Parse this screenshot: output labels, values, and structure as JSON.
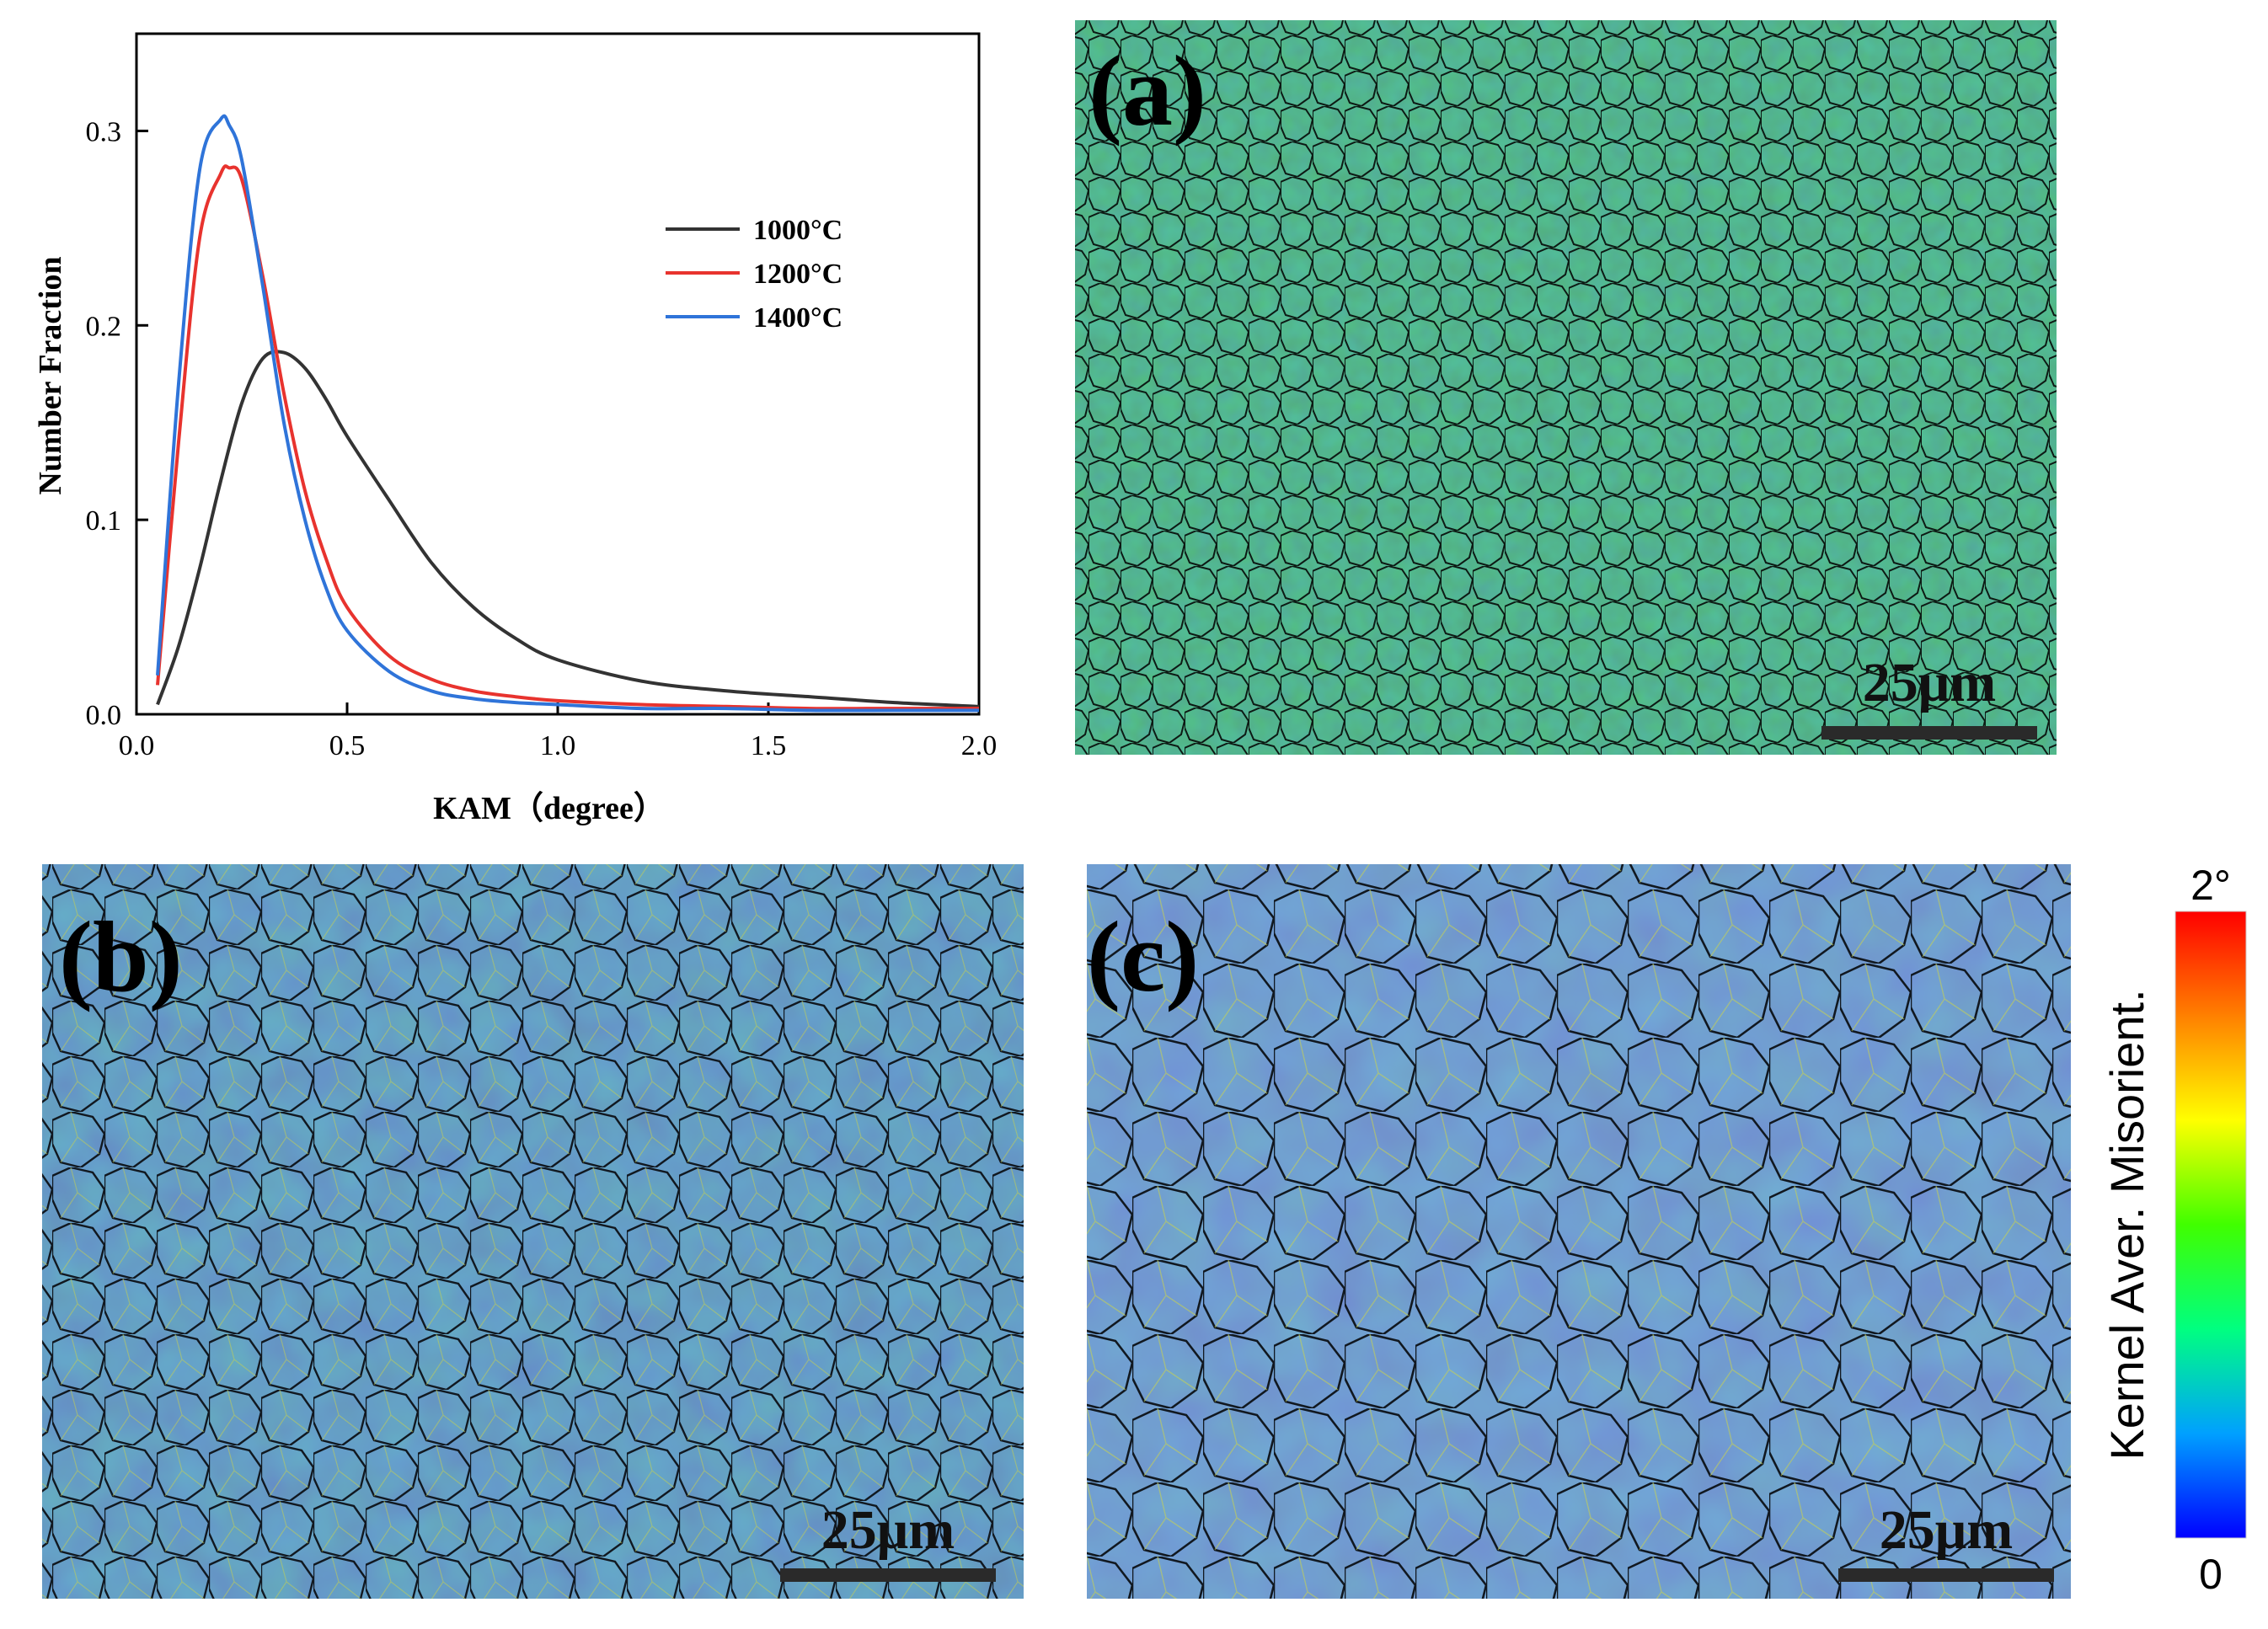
{
  "chart_data": {
    "type": "line",
    "title": "",
    "xlabel": "KAM（degree）",
    "ylabel": "Number Fraction",
    "xlim": [
      0.0,
      2.0
    ],
    "ylim": [
      0.0,
      0.35
    ],
    "xticks": [
      "0.0",
      "0.5",
      "1.0",
      "1.5",
      "2.0"
    ],
    "yticks": [
      "0.0",
      "0.1",
      "0.2",
      "0.3"
    ],
    "legend_position": "top-right",
    "series": [
      {
        "name": "1000°C",
        "color": "#333333",
        "x": [
          0.05,
          0.1,
          0.15,
          0.2,
          0.25,
          0.3,
          0.35,
          0.4,
          0.45,
          0.5,
          0.6,
          0.7,
          0.8,
          0.9,
          1.0,
          1.2,
          1.4,
          1.6,
          1.8,
          2.0
        ],
        "y": [
          0.005,
          0.035,
          0.075,
          0.12,
          0.16,
          0.183,
          0.186,
          0.178,
          0.162,
          0.143,
          0.11,
          0.078,
          0.055,
          0.039,
          0.028,
          0.017,
          0.012,
          0.009,
          0.006,
          0.004
        ]
      },
      {
        "name": "1200°C",
        "color": "#e8332e",
        "x": [
          0.05,
          0.1,
          0.15,
          0.2,
          0.22,
          0.25,
          0.3,
          0.35,
          0.4,
          0.45,
          0.5,
          0.6,
          0.7,
          0.8,
          0.9,
          1.0,
          1.2,
          1.4,
          1.6,
          1.8,
          2.0
        ],
        "y": [
          0.015,
          0.14,
          0.245,
          0.278,
          0.281,
          0.275,
          0.225,
          0.165,
          0.115,
          0.08,
          0.055,
          0.03,
          0.018,
          0.012,
          0.009,
          0.007,
          0.005,
          0.004,
          0.003,
          0.003,
          0.003
        ]
      },
      {
        "name": "1400°C",
        "color": "#2f74d9",
        "x": [
          0.05,
          0.1,
          0.15,
          0.2,
          0.22,
          0.25,
          0.3,
          0.35,
          0.4,
          0.45,
          0.5,
          0.6,
          0.7,
          0.8,
          0.9,
          1.0,
          1.2,
          1.4,
          1.6,
          1.8,
          2.0
        ],
        "y": [
          0.02,
          0.17,
          0.28,
          0.306,
          0.303,
          0.285,
          0.22,
          0.15,
          0.1,
          0.065,
          0.043,
          0.022,
          0.012,
          0.008,
          0.006,
          0.005,
          0.003,
          0.003,
          0.002,
          0.002,
          0.002
        ]
      }
    ]
  },
  "panels": [
    {
      "label": "(a)",
      "scale_bar": "25μm"
    },
    {
      "label": "(b)",
      "scale_bar": "25μm"
    },
    {
      "label": "(c)",
      "scale_bar": "25μm"
    }
  ],
  "colorbar": {
    "title": "Kernel Aver. Misorient.",
    "max_label": "2°",
    "min_label": "0",
    "colors": [
      "#0000ff",
      "#00a0ff",
      "#00ff80",
      "#40ff00",
      "#ffff00",
      "#ff8000",
      "#ff0000"
    ]
  },
  "map_colors": {
    "a_base": "#4a9a5a",
    "b_base": "#4f72b0",
    "c_base": "#5a75bf"
  }
}
